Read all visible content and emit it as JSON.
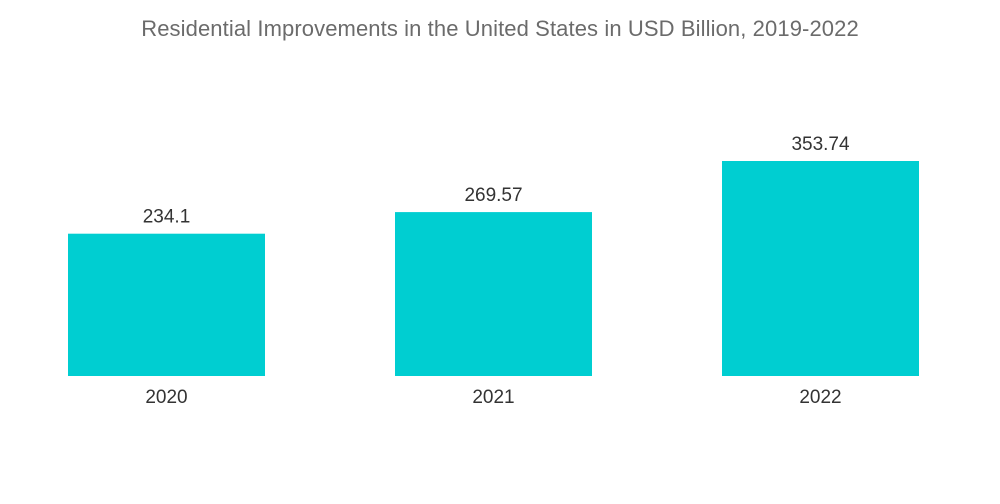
{
  "chart_data": {
    "type": "bar",
    "title": "Residential Improvements in the United States in USD Billion, 2019-2022",
    "categories": [
      "2020",
      "2021",
      "2022"
    ],
    "values": [
      234.1,
      269.57,
      353.74
    ],
    "value_labels": [
      "234.1",
      "269.57",
      "353.74"
    ],
    "xlabel": "",
    "ylabel": "",
    "ylim": [
      0,
      380
    ],
    "grid": false,
    "legend": "none",
    "colors": {
      "bar": "#00CED1",
      "text": "#333333",
      "title": "#6b6b6b"
    }
  }
}
